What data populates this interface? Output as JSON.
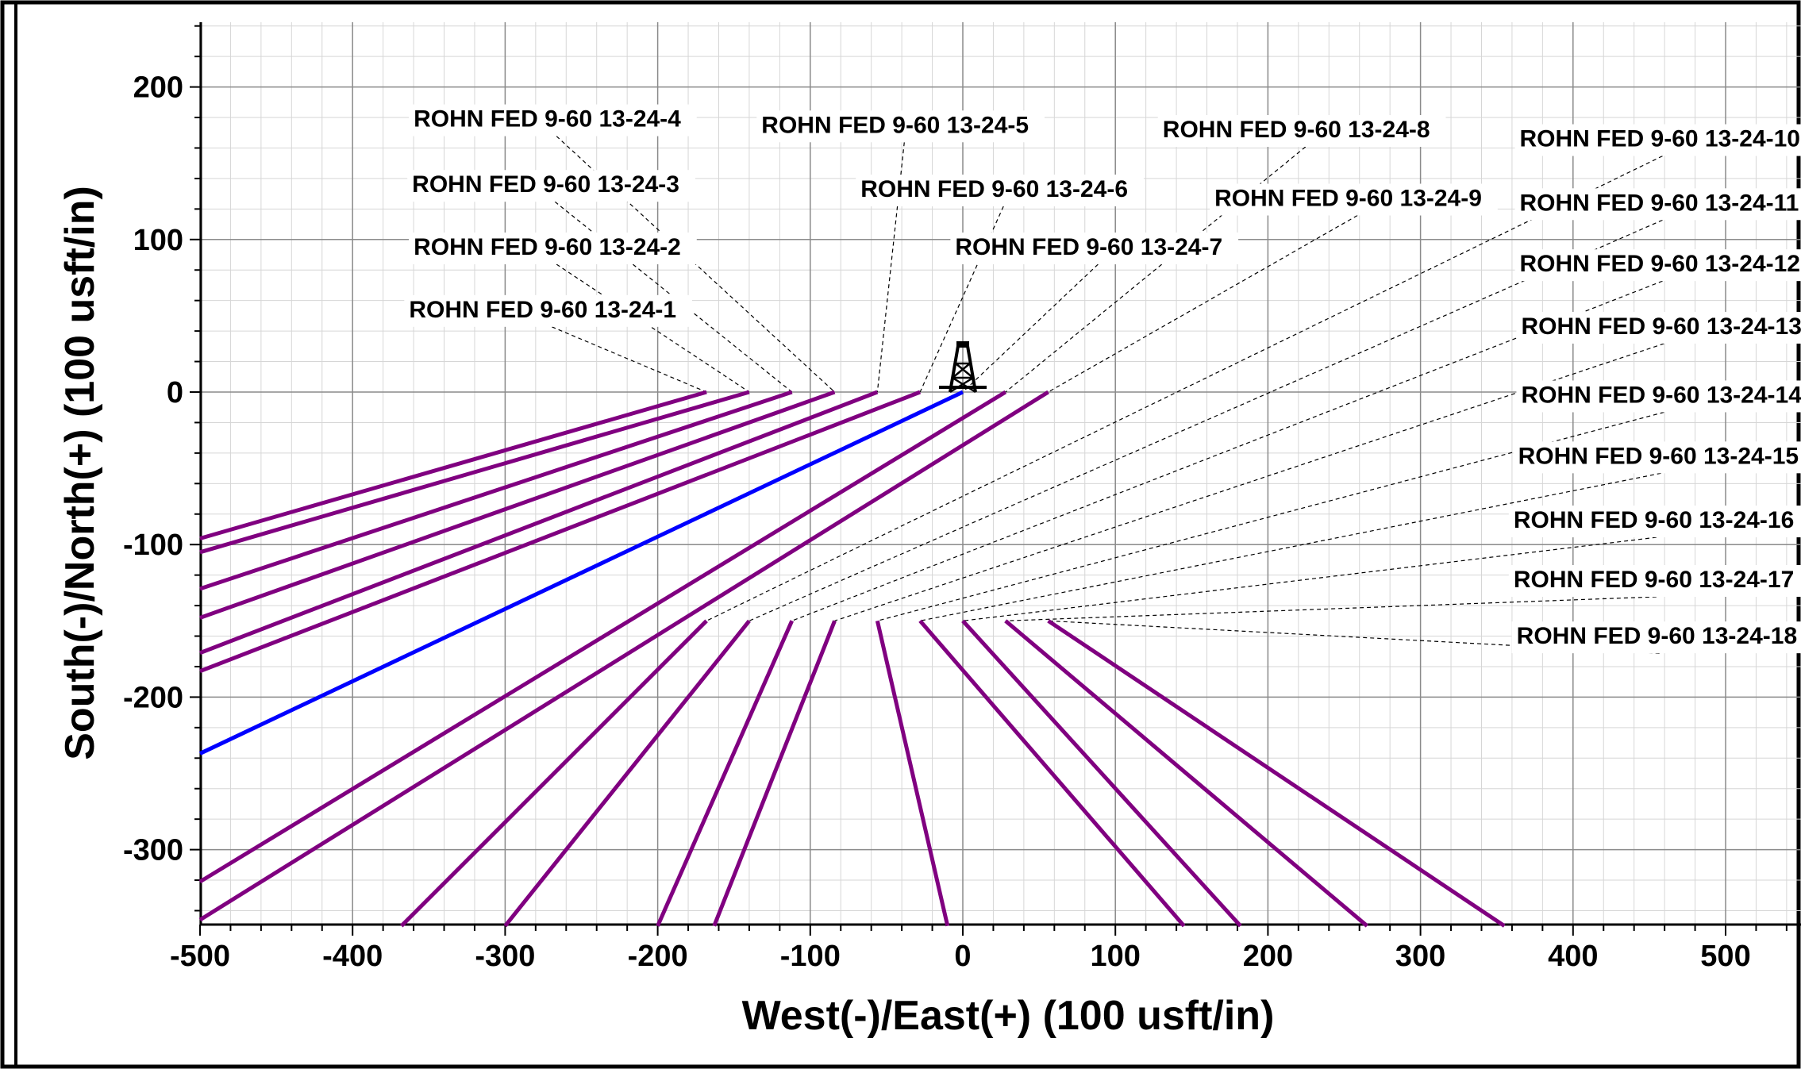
{
  "chart_data": {
    "type": "line",
    "xlabel": "West(-)/East(+) (100 usft/in)",
    "ylabel": "South(-)/North(+) (100 usft/in)",
    "xlim": [
      -500,
      550
    ],
    "ylim": [
      -350,
      245
    ],
    "x_ticks": [
      "-500",
      "-400",
      "-300",
      "-200",
      "-100",
      "0",
      "100",
      "200",
      "300",
      "400",
      "500"
    ],
    "y_ticks": [
      "200",
      "100",
      "0",
      "-100",
      "-200",
      "-300"
    ],
    "grid": true,
    "colors": {
      "planned": "#800080",
      "actual": "#0000ff",
      "leader": "#000000"
    },
    "icon": "drilling-rig-icon",
    "series": [
      {
        "name": "ROHN FED 9-60 13-24-1",
        "color": "#800080",
        "x": [
          -168,
          -500
        ],
        "y": [
          0,
          -96
        ],
        "label_x": -465,
        "label_y": 50
      },
      {
        "name": "ROHN FED 9-60 13-24-2",
        "color": "#800080",
        "x": [
          -140,
          -500
        ],
        "y": [
          0,
          -105
        ],
        "label_x": -395,
        "label_y": 91
      },
      {
        "name": "ROHN FED 9-60 13-24-3",
        "color": "#800080",
        "x": [
          -112,
          -500
        ],
        "y": [
          0,
          -129
        ],
        "label_x": -372,
        "label_y": 132
      },
      {
        "name": "ROHN FED 9-60 13-24-4",
        "color": "#800080",
        "x": [
          -84,
          -500
        ],
        "y": [
          0,
          -148
        ],
        "label_x": -432,
        "label_y": 172
      },
      {
        "name": "ROHN FED 9-60 13-24-5",
        "color": "#800080",
        "x": [
          -56,
          -500
        ],
        "y": [
          0,
          -171
        ],
        "label_x": -80,
        "label_y": 168
      },
      {
        "name": "ROHN FED 9-60 13-24-6",
        "color": "#800080",
        "x": [
          -28,
          -500
        ],
        "y": [
          0,
          -183
        ],
        "label_x": -20,
        "label_y": 128
      },
      {
        "name": "ROHN FED 9-60 13-24-7",
        "color": "#800080",
        "x": [
          28,
          -500
        ],
        "y": [
          0,
          -321
        ],
        "label_x": 70,
        "label_y": 90
      },
      {
        "name": "ROHN FED 9-60 13-24-8",
        "color": "#800080",
        "x": [
          56,
          -500
        ],
        "y": [
          0,
          -346
        ],
        "label_x": 200,
        "label_y": 160
      },
      {
        "name": "ROHN FED 9-60 13-24-9",
        "color": "#800080",
        "x": [
          -168,
          -368
        ],
        "y": [
          -150,
          -350
        ],
        "label_x": 210,
        "label_y": 110
      },
      {
        "name": "ROHN FED 9-60 13-24-10",
        "color": "#800080",
        "x": [
          -140,
          -300
        ],
        "y": [
          -150,
          -350
        ],
        "label_x": 428,
        "label_y": 150
      },
      {
        "name": "ROHN FED 9-60 13-24-11",
        "color": "#800080",
        "x": [
          -112,
          -200
        ],
        "y": [
          -150,
          -350
        ],
        "label_x": 420,
        "label_y": 110
      },
      {
        "name": "ROHN FED 9-60 13-24-12",
        "color": "#800080",
        "x": [
          -84,
          -163
        ],
        "y": [
          -150,
          -350
        ],
        "label_x": 418,
        "label_y": 70
      },
      {
        "name": "ROHN FED 9-60 13-24-13",
        "color": "#800080",
        "x": [
          -56,
          -10
        ],
        "y": [
          -150,
          -350
        ],
        "label_x": 418,
        "label_y": 26
      },
      {
        "name": "ROHN FED 9-60 13-24-14",
        "color": "#800080",
        "x": [
          -28,
          145
        ],
        "y": [
          -150,
          -350
        ],
        "label_x": 420,
        "label_y": -20
      },
      {
        "name": "ROHN FED 9-60 13-24-15",
        "color": "#800080",
        "x": [
          0,
          182
        ],
        "y": [
          -150,
          -350
        ],
        "label_x": 408,
        "label_y": -64
      },
      {
        "name": "ROHN FED 9-60 13-24-16",
        "color": "#800080",
        "x": [
          28,
          265
        ],
        "y": [
          -150,
          -350
        ],
        "label_x": 380,
        "label_y": -108
      },
      {
        "name": "ROHN FED 9-60 13-24-17",
        "color": "#800080",
        "x": [
          56,
          355
        ],
        "y": [
          -150,
          -350
        ],
        "label_x": 375,
        "label_y": -150
      },
      {
        "name": "ROHN FED 9-60 13-24-18",
        "color": "#0000ff",
        "x": [
          0,
          -500
        ],
        "y": [
          0,
          -237
        ],
        "label_x": 375,
        "label_y": -186
      }
    ],
    "labels": [
      {
        "text": "ROHN FED 9-60 13-24-4",
        "x": -360,
        "y": 174,
        "anchor_x": -84,
        "anchor_y": 0
      },
      {
        "text": "ROHN FED 9-60 13-24-3",
        "x": -361,
        "y": 131,
        "anchor_x": -112,
        "anchor_y": 0
      },
      {
        "text": "ROHN FED 9-60 13-24-2",
        "x": -360,
        "y": 90,
        "anchor_x": -140,
        "anchor_y": 0
      },
      {
        "text": "ROHN FED 9-60 13-24-1",
        "x": -363,
        "y": 49,
        "anchor_x": -168,
        "anchor_y": 0
      },
      {
        "text": "ROHN FED 9-60 13-24-5",
        "x": -132,
        "y": 170,
        "anchor_x": -56,
        "anchor_y": 0
      },
      {
        "text": "ROHN FED 9-60 13-24-6",
        "x": -67,
        "y": 128,
        "anchor_x": -28,
        "anchor_y": 0
      },
      {
        "text": "ROHN FED 9-60 13-24-7",
        "x": -5,
        "y": 90,
        "anchor_x": 0,
        "anchor_y": 0
      },
      {
        "text": "ROHN FED 9-60 13-24-8",
        "x": 131,
        "y": 167,
        "anchor_x": 28,
        "anchor_y": 0
      },
      {
        "text": "ROHN FED 9-60 13-24-9",
        "x": 165,
        "y": 122,
        "anchor_x": 56,
        "anchor_y": 0
      },
      {
        "text": "ROHN FED 9-60 13-24-10",
        "x": 365,
        "y": 161,
        "anchor_x": -168,
        "anchor_y": -150
      },
      {
        "text": "ROHN FED 9-60 13-24-11",
        "x": 365,
        "y": 119,
        "anchor_x": -140,
        "anchor_y": -150
      },
      {
        "text": "ROHN FED 9-60 13-24-12",
        "x": 365,
        "y": 79,
        "anchor_x": -112,
        "anchor_y": -150
      },
      {
        "text": "ROHN FED 9-60 13-24-13",
        "x": 366,
        "y": 38,
        "anchor_x": -84,
        "anchor_y": -150
      },
      {
        "text": "ROHN FED 9-60 13-24-14",
        "x": 366,
        "y": -7,
        "anchor_x": -56,
        "anchor_y": -150
      },
      {
        "text": "ROHN FED 9-60 13-24-15",
        "x": 364,
        "y": -47,
        "anchor_x": -28,
        "anchor_y": -150
      },
      {
        "text": "ROHN FED 9-60 13-24-16",
        "x": 361,
        "y": -89,
        "anchor_x": 0,
        "anchor_y": -150
      },
      {
        "text": "ROHN FED 9-60 13-24-17",
        "x": 361,
        "y": -128,
        "anchor_x": 28,
        "anchor_y": -150
      },
      {
        "text": "ROHN FED 9-60 13-24-18",
        "x": 363,
        "y": -165,
        "anchor_x": 56,
        "anchor_y": -150
      }
    ]
  }
}
